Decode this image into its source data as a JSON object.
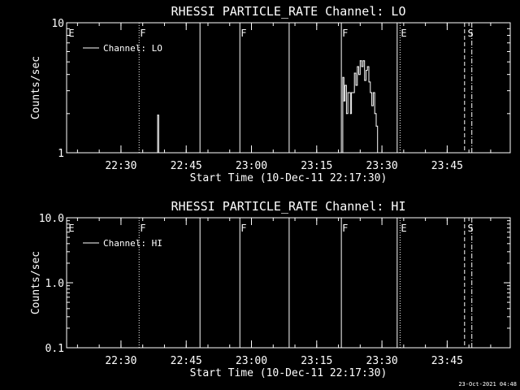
{
  "footer": {
    "timestamp": "23-Oct-2021 04:48"
  },
  "chart_data": [
    {
      "type": "line",
      "title": "RHESSI PARTICLE_RATE Channel: LO",
      "xlabel": "Start Time (10-Dec-11 22:17:30)",
      "ylabel": "Counts/sec",
      "y_scale": "log",
      "ylim": [
        1,
        10
      ],
      "y_ticks": [
        1,
        10
      ],
      "y_tick_labels": [
        "1",
        "10"
      ],
      "xlim": [
        "22:17:30",
        "23:59:30"
      ],
      "x_tick_labels": [
        "22:30",
        "22:45",
        "23:00",
        "23:15",
        "23:30",
        "23:45"
      ],
      "legend": {
        "label": "Channel: LO",
        "placement": "top-left"
      },
      "series": [
        {
          "name": "Channel: LO",
          "points": [
            [
              "22:38:15",
              1.0
            ],
            [
              "22:38:25",
              1.95
            ],
            [
              "22:38:40",
              1.0
            ],
            [
              "23:20:50",
              1.0
            ],
            [
              "23:21:00",
              3.8
            ],
            [
              "23:21:15",
              2.5
            ],
            [
              "23:21:30",
              3.3
            ],
            [
              "23:21:50",
              2.0
            ],
            [
              "23:22:10",
              2.9
            ],
            [
              "23:22:30",
              2.9
            ],
            [
              "23:22:45",
              2.0
            ],
            [
              "23:23:00",
              2.9
            ],
            [
              "23:23:20",
              2.9
            ],
            [
              "23:23:40",
              4.1
            ],
            [
              "23:24:00",
              3.3
            ],
            [
              "23:24:20",
              4.6
            ],
            [
              "23:24:40",
              4.0
            ],
            [
              "23:25:00",
              5.1
            ],
            [
              "23:25:20",
              4.6
            ],
            [
              "23:25:40",
              5.1
            ],
            [
              "23:26:00",
              3.6
            ],
            [
              "23:26:20",
              4.3
            ],
            [
              "23:26:40",
              4.6
            ],
            [
              "23:27:00",
              3.5
            ],
            [
              "23:27:20",
              2.9
            ],
            [
              "23:27:40",
              2.3
            ],
            [
              "23:28:00",
              2.9
            ],
            [
              "23:28:20",
              2.0
            ],
            [
              "23:28:40",
              1.6
            ],
            [
              "23:29:00",
              1.0
            ]
          ]
        }
      ],
      "markers": [
        {
          "label": "E",
          "time": "22:17:45",
          "style": "none"
        },
        {
          "label": "F",
          "time": "22:34:10",
          "style": "dotted"
        },
        {
          "label": "",
          "time": "22:48:10",
          "style": "solid"
        },
        {
          "label": "F",
          "time": "22:57:20",
          "style": "solid"
        },
        {
          "label": "",
          "time": "23:08:40",
          "style": "solid"
        },
        {
          "label": "F",
          "time": "23:20:40",
          "style": "solid"
        },
        {
          "label": "",
          "time": "23:33:30",
          "style": "solid"
        },
        {
          "label": "E",
          "time": "23:34:10",
          "style": "dotted"
        },
        {
          "label": "",
          "time": "23:49:00",
          "style": "dashed"
        },
        {
          "label": "S",
          "time": "23:49:30",
          "style": "none"
        },
        {
          "label": "",
          "time": "23:50:40",
          "style": "dashdot"
        }
      ]
    },
    {
      "type": "line",
      "title": "RHESSI PARTICLE_RATE Channel: HI",
      "xlabel": "Start Time (10-Dec-11 22:17:30)",
      "ylabel": "Counts/sec",
      "y_scale": "log",
      "ylim": [
        0.1,
        10
      ],
      "y_ticks": [
        0.1,
        1,
        10
      ],
      "y_tick_labels": [
        "0.1",
        "1.0",
        "10.0"
      ],
      "xlim": [
        "22:17:30",
        "23:59:30"
      ],
      "x_tick_labels": [
        "22:30",
        "22:45",
        "23:00",
        "23:15",
        "23:30",
        "23:45"
      ],
      "legend": {
        "label": "Channel: HI",
        "placement": "top-left"
      },
      "series": [
        {
          "name": "Channel: HI",
          "points": []
        }
      ],
      "markers": [
        {
          "label": "E",
          "time": "22:17:45",
          "style": "none"
        },
        {
          "label": "F",
          "time": "22:34:10",
          "style": "dotted"
        },
        {
          "label": "",
          "time": "22:48:10",
          "style": "solid"
        },
        {
          "label": "F",
          "time": "22:57:20",
          "style": "solid"
        },
        {
          "label": "",
          "time": "23:08:40",
          "style": "solid"
        },
        {
          "label": "F",
          "time": "23:20:40",
          "style": "solid"
        },
        {
          "label": "",
          "time": "23:33:30",
          "style": "solid"
        },
        {
          "label": "E",
          "time": "23:34:10",
          "style": "dotted"
        },
        {
          "label": "",
          "time": "23:49:00",
          "style": "dashed"
        },
        {
          "label": "S",
          "time": "23:49:30",
          "style": "none"
        },
        {
          "label": "",
          "time": "23:50:40",
          "style": "dashdot"
        }
      ]
    }
  ]
}
